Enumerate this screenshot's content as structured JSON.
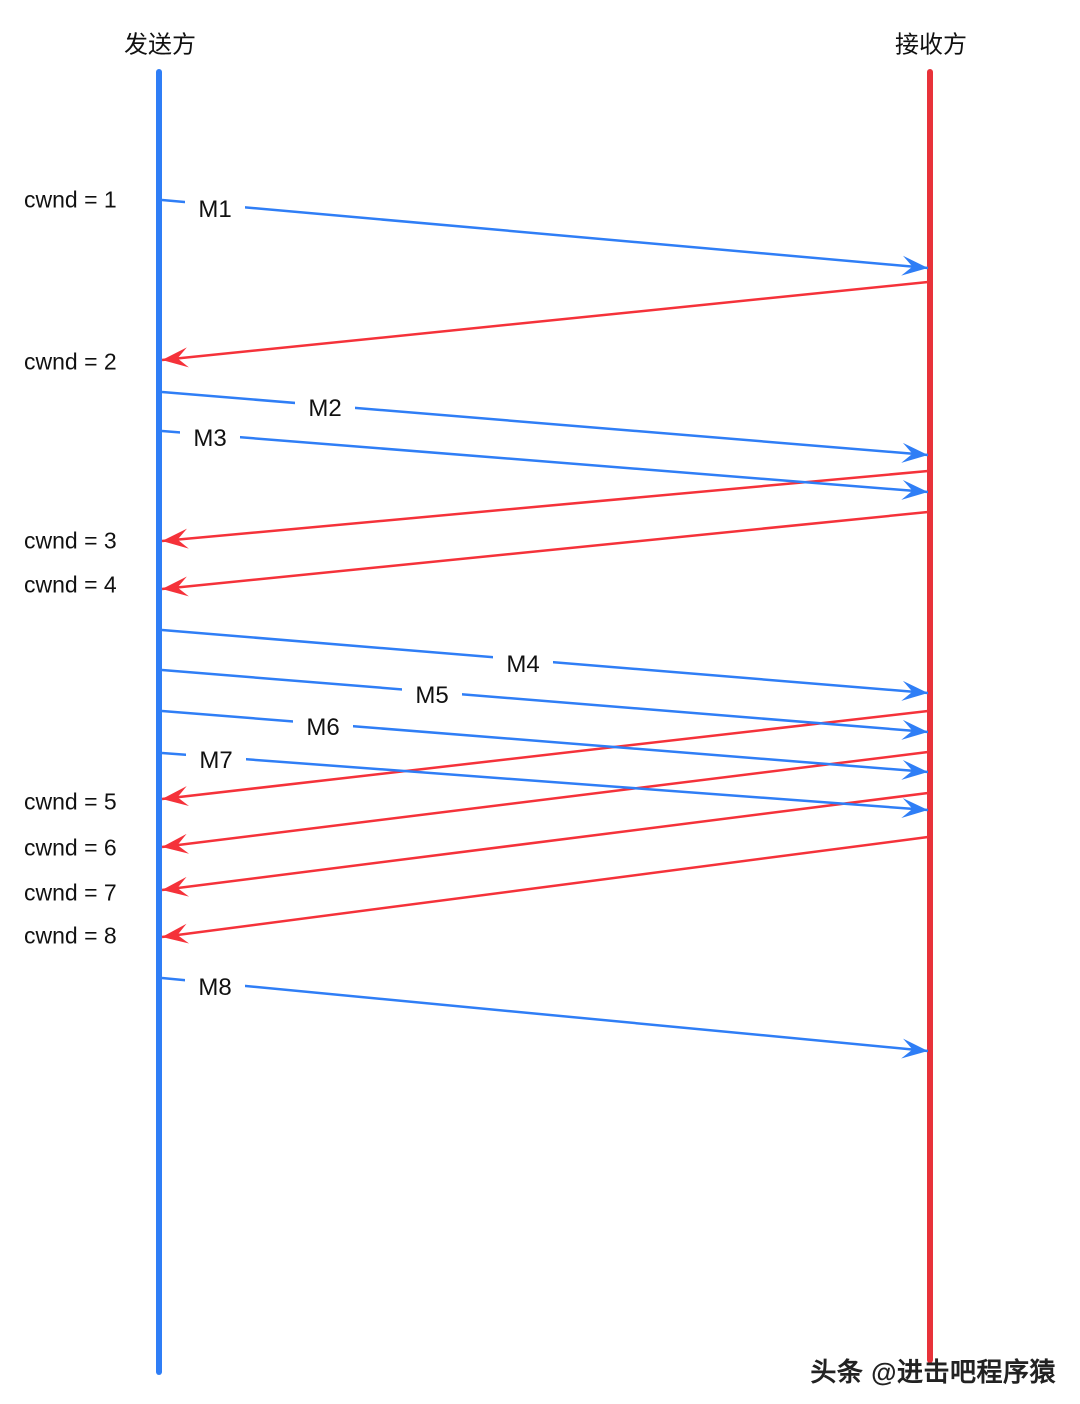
{
  "sender": {
    "title": "发送方",
    "color": "#2f7ef6"
  },
  "receiver": {
    "title": "接收方",
    "color": "#e8323a"
  },
  "cwnd_labels": [
    "cwnd = 1",
    "cwnd = 2",
    "cwnd = 3",
    "cwnd = 4",
    "cwnd = 5",
    "cwnd = 6",
    "cwnd = 7",
    "cwnd = 8"
  ],
  "messages": [
    "M1",
    "M2",
    "M3",
    "M4",
    "M5",
    "M6",
    "M7",
    "M8"
  ],
  "ack_color": "#f5323a",
  "watermark": "头条 @进击吧程序猿"
}
